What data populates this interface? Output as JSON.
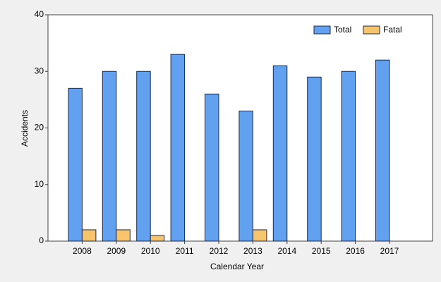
{
  "chart_data": {
    "type": "bar",
    "x_label": "Calendar Year",
    "y_label": "Accidents",
    "categories": [
      "2008",
      "2009",
      "2010",
      "2011",
      "2012",
      "2013",
      "2014",
      "2015",
      "2016",
      "2017"
    ],
    "series": [
      {
        "name": "Total",
        "color": "#62a0f0",
        "values": [
          27,
          30,
          30,
          33,
          26,
          23,
          31,
          29,
          30,
          32
        ]
      },
      {
        "name": "Fatal",
        "color": "#f6c46c",
        "values": [
          2,
          2,
          1,
          0,
          0,
          2,
          0,
          0,
          0,
          0
        ]
      }
    ],
    "ylim": [
      0,
      40
    ],
    "yticks": [
      0,
      10,
      20,
      30,
      40
    ],
    "legend": "top-right"
  }
}
